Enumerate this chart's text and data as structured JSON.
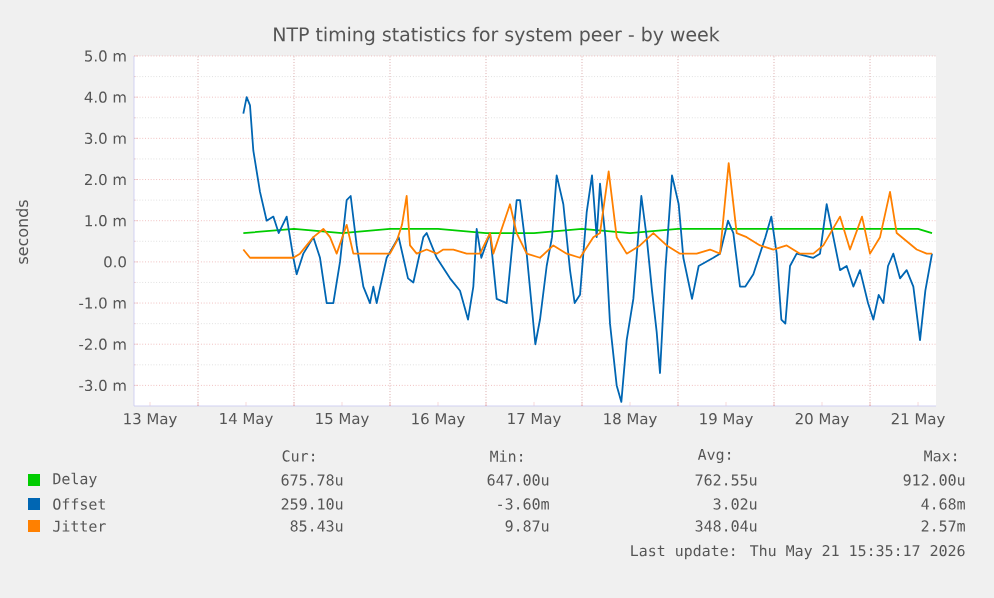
{
  "chart_data": {
    "type": "line",
    "title": "NTP timing statistics for system peer - by week",
    "ylabel": "seconds",
    "xlim": [
      "2026-05-13T08:00",
      "2026-05-21T16:30"
    ],
    "xticks": [
      {
        "value": "2026-05-13T12:00",
        "label": "13 May"
      },
      {
        "value": "2026-05-14T00:00",
        "label": null
      },
      {
        "value": "2026-05-14T12:00",
        "label": "14 May"
      },
      {
        "value": "2026-05-15T00:00",
        "label": null
      },
      {
        "value": "2026-05-15T12:00",
        "label": "15 May"
      },
      {
        "value": "2026-05-16T00:00",
        "label": null
      },
      {
        "value": "2026-05-16T12:00",
        "label": "16 May"
      },
      {
        "value": "2026-05-17T00:00",
        "label": null
      },
      {
        "value": "2026-05-17T12:00",
        "label": "17 May"
      },
      {
        "value": "2026-05-18T00:00",
        "label": null
      },
      {
        "value": "2026-05-18T12:00",
        "label": "18 May"
      },
      {
        "value": "2026-05-19T00:00",
        "label": null
      },
      {
        "value": "2026-05-19T12:00",
        "label": "19 May"
      },
      {
        "value": "2026-05-20T00:00",
        "label": null
      },
      {
        "value": "2026-05-20T12:00",
        "label": "20 May"
      },
      {
        "value": "2026-05-21T00:00",
        "label": null
      },
      {
        "value": "2026-05-21T12:00",
        "label": "21 May"
      }
    ],
    "ylim": [
      -3.5,
      5
    ],
    "yticks": [
      {
        "value": -3,
        "label": "-3.0 m"
      },
      {
        "value": -2,
        "label": "-2.0 m"
      },
      {
        "value": -1,
        "label": "-1.0 m"
      },
      {
        "value": 0,
        "label": "0.0"
      },
      {
        "value": 1,
        "label": "1.0 m"
      },
      {
        "value": 2,
        "label": "2.0 m"
      },
      {
        "value": 3,
        "label": "3.0 m"
      },
      {
        "value": 4,
        "label": "4.0 m"
      },
      {
        "value": 5,
        "label": "5.0 m"
      }
    ],
    "grid": true,
    "legend": "bottom",
    "series": [
      {
        "name": "Delay",
        "color": "#00cc00",
        "x": [
          "2026-05-14T11:20",
          "2026-05-15T00:00",
          "2026-05-15T12:00",
          "2026-05-16T00:00",
          "2026-05-16T12:00",
          "2026-05-17T00:00",
          "2026-05-17T12:00",
          "2026-05-18T00:00",
          "2026-05-18T12:00",
          "2026-05-19T00:00",
          "2026-05-19T12:00",
          "2026-05-20T00:00",
          "2026-05-20T12:00",
          "2026-05-21T00:00",
          "2026-05-21T12:00",
          "2026-05-21T15:30"
        ],
        "values": [
          0.7,
          0.8,
          0.7,
          0.8,
          0.8,
          0.7,
          0.7,
          0.8,
          0.7,
          0.8,
          0.8,
          0.8,
          0.8,
          0.8,
          0.8,
          0.7
        ]
      },
      {
        "name": "Offset",
        "color": "#0066b3",
        "x": [
          "2026-05-14T11:20",
          "2026-05-14T12:10",
          "2026-05-14T13:00",
          "2026-05-14T13:50",
          "2026-05-14T15:30",
          "2026-05-14T17:10",
          "2026-05-14T18:50",
          "2026-05-14T20:10",
          "2026-05-14T22:10",
          "2026-05-14T23:50",
          "2026-05-15T00:40",
          "2026-05-15T02:20",
          "2026-05-15T04:50",
          "2026-05-15T06:30",
          "2026-05-15T08:10",
          "2026-05-15T09:50",
          "2026-05-15T11:30",
          "2026-05-15T13:10",
          "2026-05-15T14:10",
          "2026-05-15T15:40",
          "2026-05-15T17:20",
          "2026-05-15T19:00",
          "2026-05-15T19:50",
          "2026-05-15T20:40",
          "2026-05-15T23:10",
          "2026-05-16T02:10",
          "2026-05-16T04:30",
          "2026-05-16T05:50",
          "2026-05-16T08:20",
          "2026-05-16T09:10",
          "2026-05-16T11:40",
          "2026-05-16T15:00",
          "2026-05-16T17:30",
          "2026-05-16T19:30",
          "2026-05-16T20:50",
          "2026-05-16T21:40",
          "2026-05-16T22:50",
          "2026-05-17T01:00",
          "2026-05-17T02:40",
          "2026-05-17T05:10",
          "2026-05-17T07:40",
          "2026-05-17T08:30",
          "2026-05-17T10:10",
          "2026-05-17T12:20",
          "2026-05-17T13:30",
          "2026-05-17T15:10",
          "2026-05-17T16:30",
          "2026-05-17T17:40",
          "2026-05-17T19:20",
          "2026-05-17T21:00",
          "2026-05-17T22:10",
          "2026-05-17T23:30",
          "2026-05-18T01:10",
          "2026-05-18T02:30",
          "2026-05-18T03:40",
          "2026-05-18T04:30",
          "2026-05-18T05:50",
          "2026-05-18T07:00",
          "2026-05-18T08:40",
          "2026-05-18T09:50",
          "2026-05-18T11:10",
          "2026-05-18T12:50",
          "2026-05-18T14:50",
          "2026-05-18T16:10",
          "2026-05-18T17:30",
          "2026-05-18T18:40",
          "2026-05-18T19:30",
          "2026-05-18T20:50",
          "2026-05-18T22:30",
          "2026-05-19T00:10",
          "2026-05-19T01:20",
          "2026-05-19T03:30",
          "2026-05-19T05:10",
          "2026-05-19T08:50",
          "2026-05-19T10:30",
          "2026-05-19T12:30",
          "2026-05-19T13:50",
          "2026-05-19T15:30",
          "2026-05-19T16:50",
          "2026-05-19T18:50",
          "2026-05-19T21:50",
          "2026-05-19T23:20",
          "2026-05-20T00:40",
          "2026-05-20T01:50",
          "2026-05-20T02:50",
          "2026-05-20T04:00",
          "2026-05-20T05:40",
          "2026-05-20T09:50",
          "2026-05-20T11:30",
          "2026-05-20T13:10",
          "2026-05-20T14:50",
          "2026-05-20T16:30",
          "2026-05-20T18:10",
          "2026-05-20T19:50",
          "2026-05-20T21:30",
          "2026-05-20T23:30",
          "2026-05-21T00:50",
          "2026-05-21T02:10",
          "2026-05-21T03:20",
          "2026-05-21T04:30",
          "2026-05-21T05:50",
          "2026-05-21T07:30",
          "2026-05-21T09:10",
          "2026-05-21T10:50",
          "2026-05-21T12:30",
          "2026-05-21T13:50",
          "2026-05-21T15:30"
        ],
        "values": [
          3.6,
          4.0,
          3.8,
          2.7,
          1.7,
          1.0,
          1.1,
          0.7,
          1.1,
          0.1,
          -0.3,
          0.2,
          0.6,
          0.1,
          -1.0,
          -1.0,
          0.0,
          1.5,
          1.6,
          0.4,
          -0.6,
          -1.0,
          -0.6,
          -1.0,
          0.1,
          0.6,
          -0.4,
          -0.5,
          0.6,
          0.7,
          0.1,
          -0.4,
          -0.7,
          -1.4,
          -0.6,
          0.8,
          0.1,
          0.7,
          -0.9,
          -1.0,
          1.5,
          1.5,
          0.2,
          -2.0,
          -1.4,
          -0.1,
          0.6,
          2.1,
          1.4,
          -0.2,
          -1.0,
          -0.8,
          1.2,
          2.1,
          0.6,
          1.9,
          0.6,
          -1.5,
          -3.0,
          -3.4,
          -1.9,
          -0.9,
          1.6,
          0.6,
          -0.7,
          -1.7,
          -2.7,
          -0.2,
          2.1,
          1.4,
          0.1,
          -0.9,
          -0.1,
          0.1,
          0.2,
          1.0,
          0.7,
          -0.6,
          -0.6,
          -0.3,
          0.6,
          1.1,
          0.2,
          -1.4,
          -1.5,
          -0.1,
          0.2,
          0.1,
          0.2,
          1.4,
          0.6,
          -0.2,
          -0.1,
          -0.6,
          -0.2,
          -1.0,
          -1.4,
          -0.8,
          -1.0,
          -0.1,
          0.2,
          -0.4,
          -0.2,
          -0.6,
          -1.9,
          -0.7,
          0.2
        ]
      },
      {
        "name": "Jitter",
        "color": "#ff8000",
        "x": [
          "2026-05-14T11:20",
          "2026-05-14T13:00",
          "2026-05-14T17:10",
          "2026-05-14T23:50",
          "2026-05-15T01:30",
          "2026-05-15T04:50",
          "2026-05-15T07:20",
          "2026-05-15T09:00",
          "2026-05-15T10:40",
          "2026-05-15T13:10",
          "2026-05-15T14:50",
          "2026-05-15T17:20",
          "2026-05-15T19:50",
          "2026-05-15T21:30",
          "2026-05-16T00:00",
          "2026-05-16T01:40",
          "2026-05-16T03:00",
          "2026-05-16T04:10",
          "2026-05-16T05:00",
          "2026-05-16T06:40",
          "2026-05-16T09:10",
          "2026-05-16T11:40",
          "2026-05-16T13:20",
          "2026-05-16T15:50",
          "2026-05-16T19:10",
          "2026-05-16T22:30",
          "2026-05-17T01:00",
          "2026-05-17T01:50",
          "2026-05-17T06:00",
          "2026-05-17T07:40",
          "2026-05-17T10:10",
          "2026-05-17T13:30",
          "2026-05-17T16:50",
          "2026-05-17T20:10",
          "2026-05-17T23:30",
          "2026-05-18T02:50",
          "2026-05-18T04:30",
          "2026-05-18T06:40",
          "2026-05-18T08:40",
          "2026-05-18T11:10",
          "2026-05-18T14:30",
          "2026-05-18T17:50",
          "2026-05-18T21:10",
          "2026-05-19T00:30",
          "2026-05-19T04:40",
          "2026-05-19T08:00",
          "2026-05-19T10:30",
          "2026-05-19T12:40",
          "2026-05-19T14:40",
          "2026-05-19T17:10",
          "2026-05-19T20:30",
          "2026-05-19T23:50",
          "2026-05-20T03:10",
          "2026-05-20T06:30",
          "2026-05-20T09:50",
          "2026-05-20T12:20",
          "2026-05-20T16:30",
          "2026-05-20T19:00",
          "2026-05-20T22:00",
          "2026-05-21T00:00",
          "2026-05-21T02:30",
          "2026-05-21T05:00",
          "2026-05-21T06:40",
          "2026-05-21T09:10",
          "2026-05-21T11:40",
          "2026-05-21T14:10",
          "2026-05-21T15:30"
        ],
        "values": [
          0.3,
          0.1,
          0.1,
          0.1,
          0.2,
          0.6,
          0.8,
          0.6,
          0.2,
          0.9,
          0.2,
          0.2,
          0.2,
          0.2,
          0.2,
          0.5,
          0.9,
          1.6,
          0.4,
          0.2,
          0.3,
          0.2,
          0.3,
          0.3,
          0.2,
          0.2,
          0.7,
          0.2,
          1.4,
          0.7,
          0.2,
          0.1,
          0.4,
          0.2,
          0.1,
          0.6,
          0.7,
          2.2,
          0.6,
          0.2,
          0.4,
          0.7,
          0.4,
          0.2,
          0.2,
          0.3,
          0.2,
          2.4,
          0.7,
          0.6,
          0.4,
          0.3,
          0.4,
          0.2,
          0.2,
          0.4,
          1.1,
          0.3,
          1.1,
          0.2,
          0.6,
          1.7,
          0.7,
          0.5,
          0.3,
          0.2,
          0.2
        ]
      }
    ],
    "annotations": [
      "Cur:",
      "Min:",
      "Avg:",
      "Max:",
      "675.78u",
      "647.00u",
      "762.55u",
      "912.00u",
      "259.10u",
      "-3.60m",
      "3.02u",
      "4.68m",
      "85.43u",
      "9.87u",
      "348.04u",
      "2.57m",
      "Last update: Thu May 21 15:35:17 2026"
    ]
  }
}
